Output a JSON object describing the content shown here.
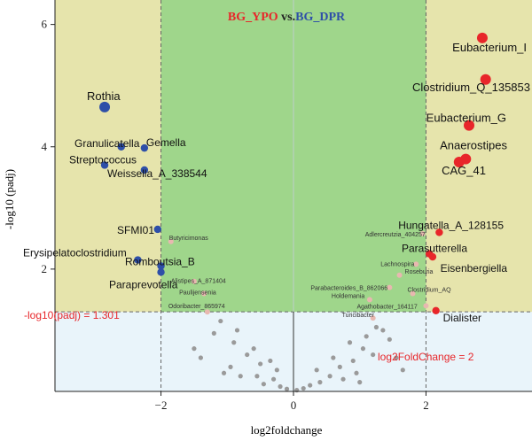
{
  "chart_data": {
    "type": "scatter",
    "title_parts": [
      {
        "text": "BG_YPO",
        "color": "#e8262a"
      },
      {
        "text": " vs.",
        "color": "#222222"
      },
      {
        "text": "BG_DPR",
        "color": "#2e4fa8"
      }
    ],
    "xlabel": "log2foldchange",
    "ylabel": "-log10 (padj)",
    "xlim": [
      -3.6,
      3.6
    ],
    "ylim": [
      0,
      6.4
    ],
    "xticks": [
      -2,
      0,
      2
    ],
    "yticks": [
      2,
      4,
      6
    ],
    "thresholds": {
      "padj_label": "-log10(padj) = 1.301",
      "padj_value": 1.301,
      "fc_label": "log2FoldChange = 2",
      "fc_value": 2
    },
    "colors": {
      "left_region": "#e6e4ac",
      "center_region": "#9fd68b",
      "bottom_region": "#e9f4fa",
      "up": "#e8262a",
      "down": "#2e4fa8",
      "minor": "#e8b8b0",
      "ns": "#9a9a9a",
      "threshold_text": "#e8262a"
    },
    "series": [
      {
        "name": "up",
        "points": [
          {
            "x": 2.85,
            "y": 5.78,
            "label": "Eubacterium_I",
            "large": true
          },
          {
            "x": 2.9,
            "y": 5.1,
            "label": "Clostridium_Q_135853",
            "large": true
          },
          {
            "x": 2.65,
            "y": 4.35,
            "label": "Eubacterium_G",
            "large": true
          },
          {
            "x": 2.6,
            "y": 3.8,
            "label": "Anaerostipes",
            "large": true
          },
          {
            "x": 2.5,
            "y": 3.75,
            "label": "CAG_41",
            "large": true
          },
          {
            "x": 2.2,
            "y": 2.6,
            "label": "Hungatella_A_128155"
          },
          {
            "x": 2.05,
            "y": 2.25,
            "label": "Parasutterella"
          },
          {
            "x": 2.1,
            "y": 2.2,
            "label": "Eisenbergiella"
          },
          {
            "x": 2.15,
            "y": 1.32,
            "label": "Dialister"
          }
        ]
      },
      {
        "name": "down",
        "points": [
          {
            "x": -2.85,
            "y": 4.65,
            "label": "Rothia",
            "large": true
          },
          {
            "x": -2.6,
            "y": 4.0,
            "label": "Granulicatella"
          },
          {
            "x": -2.25,
            "y": 3.98,
            "label": "Gemella"
          },
          {
            "x": -2.85,
            "y": 3.7,
            "label": "Streptococcus"
          },
          {
            "x": -2.25,
            "y": 3.62,
            "label": "Weissella_A_338544"
          },
          {
            "x": -2.05,
            "y": 2.65,
            "label": "SFMI01"
          },
          {
            "x": -2.35,
            "y": 2.15,
            "label": "Erysipelatoclostridium"
          },
          {
            "x": -2.0,
            "y": 2.05,
            "label": "Romboutsia_B"
          },
          {
            "x": -2.0,
            "y": 1.95,
            "label": "Paraprevotella"
          }
        ]
      },
      {
        "name": "minor",
        "points": [
          {
            "x": -1.85,
            "y": 2.45,
            "label": "Butyricimonas"
          },
          {
            "x": -1.5,
            "y": 1.8,
            "label": "Alistipes_A_871404"
          },
          {
            "x": -1.35,
            "y": 1.6,
            "label": "Paulijensenia"
          },
          {
            "x": -1.3,
            "y": 1.3,
            "label": "Odoribacter_865974"
          },
          {
            "x": 1.95,
            "y": 2.58,
            "label": "Adlercreutzia_404257"
          },
          {
            "x": 1.85,
            "y": 2.08,
            "label": "Lachnospira"
          },
          {
            "x": 1.6,
            "y": 1.9,
            "label": "Roseburia"
          },
          {
            "x": 1.45,
            "y": 1.7,
            "label": "Parabacteroides_B_862066"
          },
          {
            "x": 1.8,
            "y": 1.6,
            "label": "Clostridium_AQ"
          },
          {
            "x": 1.15,
            "y": 1.5,
            "label": "Holdemania"
          },
          {
            "x": 2.0,
            "y": 1.4,
            "label": "Agathobacter_164117"
          },
          {
            "x": 1.2,
            "y": 1.2,
            "label": "Turicibacter"
          }
        ]
      },
      {
        "name": "ns",
        "points": [
          {
            "x": -1.1,
            "y": 1.15
          },
          {
            "x": -1.2,
            "y": 0.95
          },
          {
            "x": -0.85,
            "y": 1.0
          },
          {
            "x": -0.9,
            "y": 0.8
          },
          {
            "x": -1.4,
            "y": 0.55
          },
          {
            "x": -0.7,
            "y": 0.6
          },
          {
            "x": -0.5,
            "y": 0.45
          },
          {
            "x": -0.95,
            "y": 0.4
          },
          {
            "x": -1.5,
            "y": 0.7
          },
          {
            "x": -0.55,
            "y": 0.25
          },
          {
            "x": -0.3,
            "y": 0.2
          },
          {
            "x": -0.2,
            "y": 0.08
          },
          {
            "x": -0.1,
            "y": 0.04
          },
          {
            "x": -0.45,
            "y": 0.12
          },
          {
            "x": -0.8,
            "y": 0.25
          },
          {
            "x": -0.6,
            "y": 0.7
          },
          {
            "x": -1.05,
            "y": 0.3
          },
          {
            "x": -0.35,
            "y": 0.5
          },
          {
            "x": 0.05,
            "y": 0.02
          },
          {
            "x": 0.15,
            "y": 0.05
          },
          {
            "x": 0.25,
            "y": 0.1
          },
          {
            "x": 0.4,
            "y": 0.15
          },
          {
            "x": 0.55,
            "y": 0.25
          },
          {
            "x": 0.7,
            "y": 0.4
          },
          {
            "x": 0.75,
            "y": 0.2
          },
          {
            "x": 0.9,
            "y": 0.5
          },
          {
            "x": 0.95,
            "y": 0.3
          },
          {
            "x": 1.05,
            "y": 0.7
          },
          {
            "x": 1.1,
            "y": 0.9
          },
          {
            "x": 1.25,
            "y": 1.05
          },
          {
            "x": 1.35,
            "y": 1.0
          },
          {
            "x": 1.2,
            "y": 0.6
          },
          {
            "x": 1.45,
            "y": 0.85
          },
          {
            "x": 1.55,
            "y": 0.55
          },
          {
            "x": 0.6,
            "y": 0.55
          },
          {
            "x": 0.85,
            "y": 0.8
          },
          {
            "x": 1.65,
            "y": 0.35
          },
          {
            "x": 0.35,
            "y": 0.35
          },
          {
            "x": 1.0,
            "y": 0.15
          },
          {
            "x": -0.25,
            "y": 0.35
          }
        ]
      }
    ]
  }
}
